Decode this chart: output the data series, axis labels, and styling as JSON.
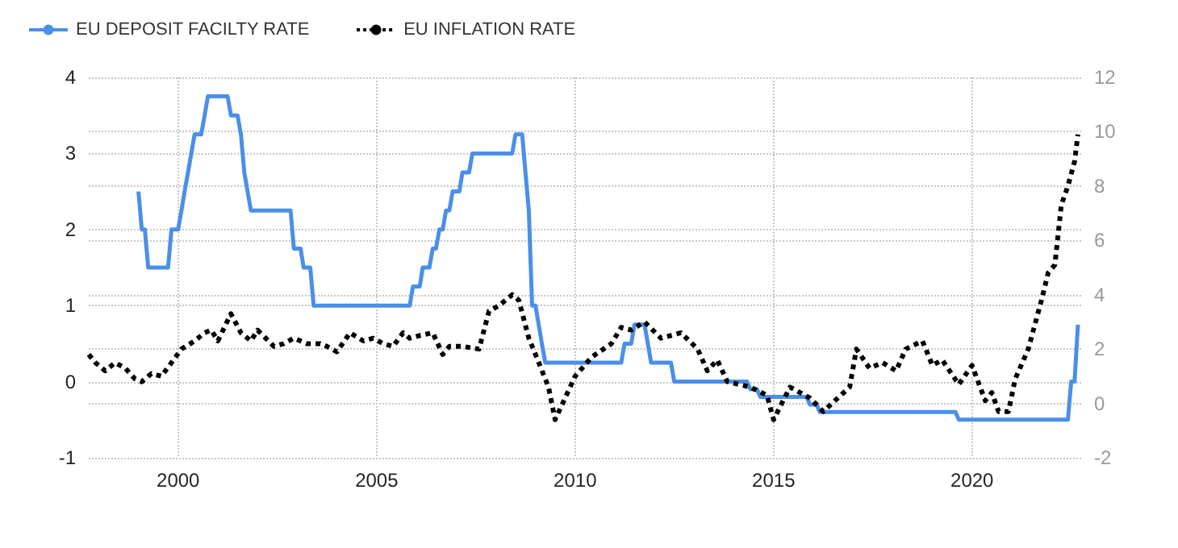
{
  "chart_data": {
    "type": "line",
    "xlim": [
      "1997-10",
      "2022-10"
    ],
    "xticks": [
      "2000",
      "2005",
      "2010",
      "2015",
      "2020"
    ],
    "ylim": [
      -1,
      4
    ],
    "yticks": [
      -1,
      0,
      1,
      2,
      3,
      4
    ],
    "y2lim": [
      -2,
      12
    ],
    "y2ticks": [
      -2,
      0,
      2,
      4,
      6,
      8,
      10,
      12
    ],
    "grid": true,
    "legend": "top left",
    "marker": "none",
    "series": [
      {
        "name": "EU DEPOSIT FACILTY RATE",
        "color": "#4a8fe8",
        "line_style": "solid",
        "x": [
          "1999-01",
          "1999-02",
          "1999-03",
          "1999-04",
          "1999-10",
          "1999-11",
          "2000-01",
          "2000-02",
          "2000-03",
          "2000-04",
          "2000-06",
          "2000-08",
          "2000-09",
          "2000-10",
          "2001-04",
          "2001-05",
          "2001-07",
          "2001-08",
          "2001-09",
          "2001-11",
          "2002-11",
          "2002-12",
          "2003-02",
          "2003-03",
          "2003-05",
          "2003-06",
          "2005-11",
          "2005-12",
          "2006-02",
          "2006-03",
          "2006-05",
          "2006-06",
          "2006-07",
          "2006-08",
          "2006-09",
          "2006-10",
          "2006-11",
          "2006-12",
          "2007-02",
          "2007-03",
          "2007-05",
          "2007-06",
          "2008-06",
          "2008-07",
          "2008-09",
          "2008-10",
          "2008-11",
          "2008-12",
          "2009-01",
          "2009-03",
          "2009-04",
          "2011-03",
          "2011-04",
          "2011-06",
          "2011-07",
          "2011-10",
          "2011-11",
          "2011-12",
          "2012-06",
          "2012-07",
          "2014-05",
          "2014-06",
          "2014-08",
          "2014-09",
          "2015-11",
          "2015-12",
          "2016-02",
          "2016-03",
          "2019-08",
          "2019-09",
          "2022-06",
          "2022-07",
          "2022-08",
          "2022-09"
        ],
        "values": [
          2.5,
          2.0,
          2.0,
          1.5,
          1.5,
          2.0,
          2.0,
          2.25,
          2.5,
          2.75,
          3.25,
          3.25,
          3.5,
          3.75,
          3.75,
          3.5,
          3.5,
          3.25,
          2.75,
          2.25,
          2.25,
          1.75,
          1.75,
          1.5,
          1.5,
          1.0,
          1.0,
          1.25,
          1.25,
          1.5,
          1.5,
          1.75,
          1.75,
          2.0,
          2.0,
          2.25,
          2.25,
          2.5,
          2.5,
          2.75,
          2.75,
          3.0,
          3.0,
          3.25,
          3.25,
          2.75,
          2.25,
          1.0,
          1.0,
          0.5,
          0.25,
          0.25,
          0.5,
          0.5,
          0.75,
          0.75,
          0.5,
          0.25,
          0.25,
          0,
          0,
          -0.1,
          -0.1,
          -0.2,
          -0.2,
          -0.3,
          -0.3,
          -0.4,
          -0.4,
          -0.5,
          -0.5,
          0,
          0,
          0.75
        ]
      },
      {
        "name": "EU INFLATION RATE",
        "color": "#000000",
        "line_style": "dotted",
        "axis": "y2",
        "x": [
          "1997-10",
          "1997-12",
          "1998-03",
          "1998-06",
          "1998-09",
          "1998-12",
          "1999-02",
          "1999-05",
          "1999-08",
          "1999-11",
          "2000-02",
          "2000-06",
          "2000-09",
          "2000-11",
          "2001-01",
          "2001-05",
          "2001-08",
          "2001-11",
          "2002-01",
          "2002-06",
          "2002-09",
          "2002-12",
          "2003-04",
          "2003-08",
          "2003-10",
          "2004-01",
          "2004-05",
          "2004-09",
          "2004-12",
          "2005-03",
          "2005-06",
          "2005-09",
          "2005-11",
          "2006-02",
          "2006-06",
          "2006-09",
          "2006-11",
          "2007-03",
          "2007-08",
          "2007-11",
          "2008-02",
          "2008-06",
          "2008-08",
          "2008-11",
          "2009-02",
          "2009-05",
          "2009-07",
          "2009-10",
          "2010-01",
          "2010-06",
          "2010-12",
          "2011-03",
          "2011-06",
          "2011-10",
          "2012-03",
          "2012-09",
          "2013-02",
          "2013-05",
          "2013-08",
          "2013-11",
          "2014-06",
          "2014-11",
          "2015-01",
          "2015-06",
          "2015-12",
          "2016-04",
          "2016-12",
          "2017-02",
          "2017-06",
          "2017-10",
          "2018-02",
          "2018-05",
          "2018-10",
          "2019-01",
          "2019-04",
          "2019-09",
          "2020-01",
          "2020-05",
          "2020-07",
          "2020-09",
          "2020-12",
          "2021-02",
          "2021-06",
          "2021-10",
          "2021-12",
          "2022-02",
          "2022-04",
          "2022-06",
          "2022-08",
          "2022-09"
        ],
        "values": [
          1.8,
          1.5,
          1.2,
          1.5,
          1.3,
          0.9,
          0.8,
          1.1,
          1.0,
          1.5,
          2.0,
          2.3,
          2.6,
          2.7,
          2.3,
          3.3,
          2.6,
          2.3,
          2.7,
          2.1,
          2.2,
          2.4,
          2.2,
          2.2,
          2.1,
          1.9,
          2.6,
          2.3,
          2.4,
          2.2,
          2.1,
          2.6,
          2.4,
          2.5,
          2.6,
          1.8,
          2.1,
          2.1,
          2.0,
          3.4,
          3.6,
          4.0,
          3.8,
          2.4,
          1.5,
          0.6,
          -0.6,
          0.2,
          1.0,
          1.7,
          2.2,
          2.8,
          2.7,
          3.0,
          2.4,
          2.6,
          2.0,
          1.2,
          1.6,
          0.8,
          0.6,
          0.3,
          -0.6,
          0.6,
          0.2,
          -0.3,
          0.6,
          2.0,
          1.3,
          1.5,
          1.2,
          2.0,
          2.3,
          1.4,
          1.6,
          0.7,
          1.4,
          0.1,
          0.4,
          -0.3,
          -0.3,
          0.9,
          2.0,
          3.8,
          4.8,
          5.1,
          7.3,
          8.0,
          8.9,
          9.9
        ]
      }
    ]
  }
}
